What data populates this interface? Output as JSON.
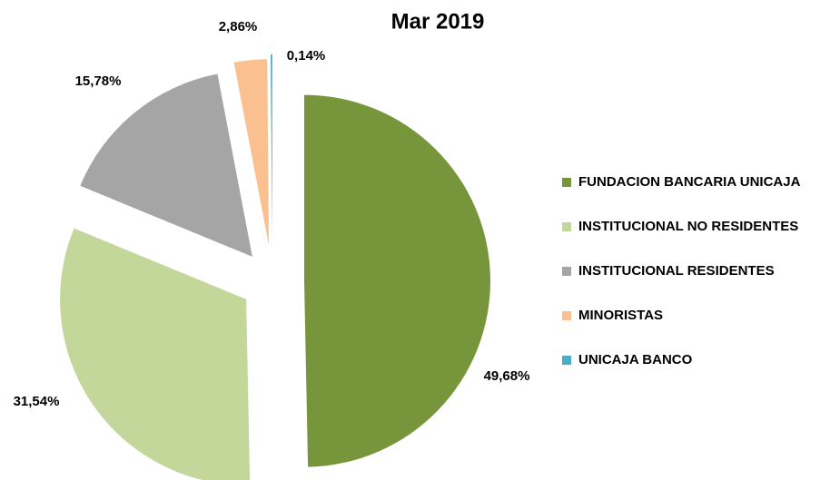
{
  "chart_data": {
    "type": "pie",
    "title": "Mar 2019",
    "categories": [
      "FUNDACION BANCARIA UNICAJA",
      "INSTITUCIONAL NO RESIDENTES",
      "INSTITUCIONAL RESIDENTES",
      "MINORISTAS",
      "UNICAJA BANCO"
    ],
    "values": [
      49.68,
      31.54,
      15.78,
      2.86,
      0.14
    ],
    "value_labels": [
      "49,68%",
      "31,54%",
      "15,78%",
      "2,86%",
      "0,14%"
    ],
    "colors": [
      "#77963b",
      "#c4d79b",
      "#a5a5a5",
      "#fac090",
      "#4bacc6"
    ],
    "legend": "right"
  }
}
